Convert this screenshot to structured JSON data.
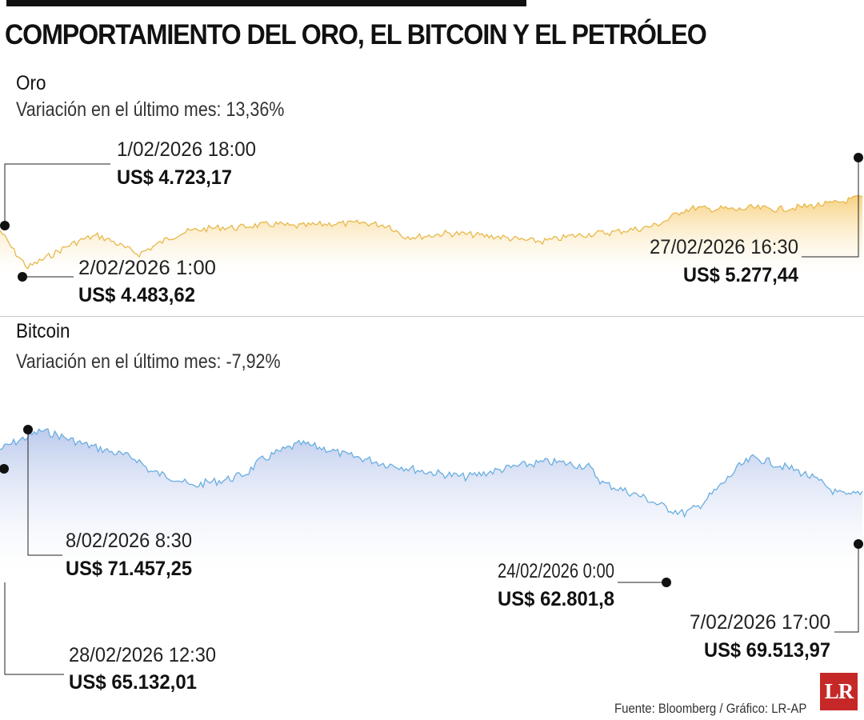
{
  "title": "COMPORTAMIENTO DEL ORO, EL BITCOIN Y EL PETRÓLEO",
  "source": "Fuente: Bloomberg / Gráfico: LR-AP",
  "logo_text": "LR",
  "colors": {
    "gold_line": "#e8b84a",
    "gold_fill": "#f7cf7a",
    "btc_line": "#6aaee0",
    "btc_fill": "#b9c8ec"
  },
  "chart_data": [
    {
      "type": "area",
      "title": "Oro",
      "subtitle": "Variación en el último mes: 13,36%",
      "ylim": [
        4400,
        5310
      ],
      "x_range": [
        "1/02/2026",
        "28/02/2026"
      ],
      "series": [
        {
          "values": [
            4760,
            4620,
            4510,
            4560,
            4610,
            4660,
            4700,
            4723,
            4690,
            4640,
            4600,
            4650,
            4700,
            4740,
            4760,
            4770,
            4780,
            4775,
            4790,
            4795,
            4800,
            4785,
            4790,
            4798,
            4805,
            4802,
            4810,
            4800,
            4790,
            4720,
            4715,
            4725,
            4740,
            4735,
            4730,
            4720,
            4715,
            4700,
            4690,
            4685,
            4700,
            4720,
            4730,
            4740,
            4745,
            4760,
            4770,
            4790,
            4830,
            4890,
            4910,
            4900,
            4905,
            4895,
            4910,
            4905,
            4900,
            4910,
            4920,
            4930,
            4940,
            4960,
            4985
          ]
        }
      ],
      "annotations": [
        {
          "date": "1/02/2026 18:00",
          "value": "US$ 4.723,17"
        },
        {
          "date": "2/02/2026 1:00",
          "value": "US$ 4.483,62"
        },
        {
          "date": "27/02/2026 16:30",
          "value": "US$ 5.277,44"
        }
      ]
    },
    {
      "type": "area",
      "title": "Bitcoin",
      "subtitle": "Variación en el último mes: -7,92%",
      "ylim": [
        55000,
        73000
      ],
      "x_range": [
        "1/02/2026",
        "28/02/2026"
      ],
      "series": [
        {
          "values": [
            69500,
            70200,
            70800,
            71457,
            71100,
            70600,
            70100,
            69700,
            69300,
            68900,
            68500,
            67200,
            66800,
            66400,
            65600,
            66000,
            66200,
            66500,
            67000,
            68300,
            69000,
            69600,
            70100,
            69800,
            69500,
            69000,
            68700,
            68400,
            68000,
            67800,
            67500,
            67200,
            67000,
            66800,
            66600,
            66900,
            67200,
            67500,
            67800,
            68000,
            68200,
            68100,
            67900,
            67700,
            66000,
            65500,
            65000,
            64500,
            63800,
            63200,
            62802,
            63500,
            64800,
            66200,
            67700,
            68600,
            68300,
            67800,
            67400,
            66800,
            66000,
            65000,
            64600,
            65132
          ]
        }
      ],
      "annotations": [
        {
          "date": "8/02/2026 8:30",
          "value": "US$ 71.457,25"
        },
        {
          "date": "24/02/2026 0:00",
          "value": "US$ 62.801,8"
        },
        {
          "date": "7/02/2026 17:00",
          "value": "US$ 69.513,97"
        },
        {
          "date": "28/02/2026 12:30",
          "value": "US$ 65.132,01"
        }
      ]
    }
  ]
}
